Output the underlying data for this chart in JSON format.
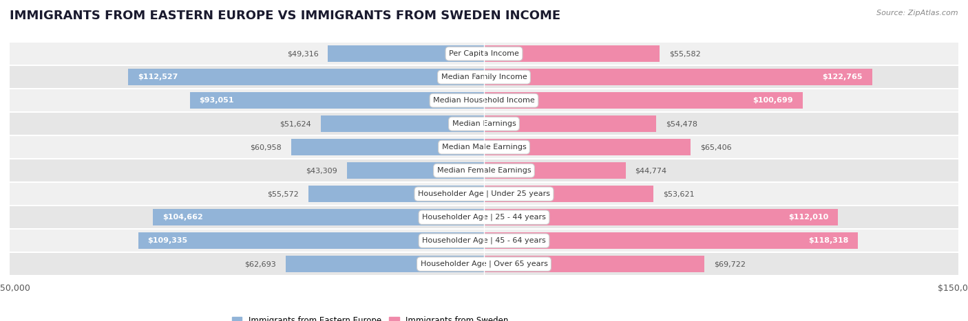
{
  "title": "IMMIGRANTS FROM EASTERN EUROPE VS IMMIGRANTS FROM SWEDEN INCOME",
  "source": "Source: ZipAtlas.com",
  "categories": [
    "Per Capita Income",
    "Median Family Income",
    "Median Household Income",
    "Median Earnings",
    "Median Male Earnings",
    "Median Female Earnings",
    "Householder Age | Under 25 years",
    "Householder Age | 25 - 44 years",
    "Householder Age | 45 - 64 years",
    "Householder Age | Over 65 years"
  ],
  "eastern_europe": [
    49316,
    112527,
    93051,
    51624,
    60958,
    43309,
    55572,
    104662,
    109335,
    62693
  ],
  "sweden": [
    55582,
    122765,
    100699,
    54478,
    65406,
    44774,
    53621,
    112010,
    118318,
    69722
  ],
  "eastern_europe_color": "#92b4d8",
  "sweden_color": "#f08aaa",
  "eastern_europe_label_color_large": "#ffffff",
  "sweden_label_color_large": "#ffffff",
  "eastern_europe_label_color_small": "#555555",
  "sweden_label_color_small": "#555555",
  "axis_limit": 150000,
  "background_color": "#ffffff",
  "row_color_even": "#f0f0f0",
  "row_color_odd": "#e6e6e6",
  "legend_label_eastern": "Immigrants from Eastern Europe",
  "legend_label_sweden": "Immigrants from Sweden",
  "label_threshold": 70000,
  "title_fontsize": 13,
  "bar_label_fontsize": 8,
  "cat_label_fontsize": 8
}
